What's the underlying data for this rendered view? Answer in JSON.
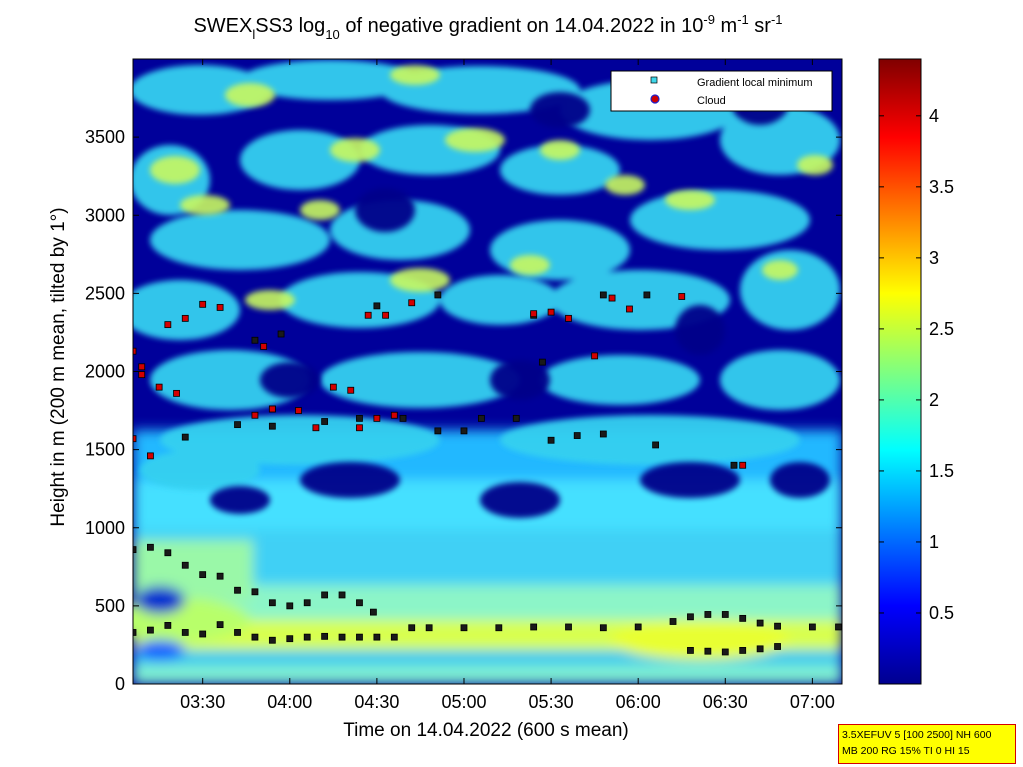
{
  "chart_data": {
    "type": "heatmap",
    "title_parts": {
      "pre": "SWEX",
      "sub_l": "l",
      "mid": "SS3 log",
      "sub_10": "10",
      "post": " of negative gradient on 14.04.2022 in 10",
      "sup_m9": "-9",
      "unit_m": " m",
      "sup_m1": "-1",
      "unit_sr": " sr",
      "sup_sr": "-1"
    },
    "xlabel": "Time on 14.04.2022 (600 s mean)",
    "ylabel": "Height in m (200 m mean, tilted by 1°)",
    "x_tick_labels": [
      "03:30",
      "04:00",
      "04:30",
      "05:00",
      "05:30",
      "06:00",
      "06:30",
      "07:00"
    ],
    "x_ticks_hours": [
      3.5,
      4.0,
      4.5,
      5.0,
      5.5,
      6.0,
      6.5,
      7.0
    ],
    "xlim_hours": [
      3.1,
      7.17
    ],
    "y_ticks": [
      0,
      500,
      1000,
      1500,
      2000,
      2500,
      3000,
      3500
    ],
    "ylim": [
      0,
      4000
    ],
    "colorbar": {
      "ticks": [
        0.5,
        1,
        1.5,
        2,
        2.5,
        3,
        3.5,
        4
      ],
      "tick_labels": [
        "0.5",
        "1",
        "1.5",
        "2",
        "2.5",
        "3",
        "3.5",
        "4"
      ],
      "range": [
        0,
        4.4
      ],
      "colormap": "jet"
    },
    "legend": {
      "placement": "top-right",
      "entries": [
        {
          "label": "Gradient local minimum",
          "color": "#3fd7ea",
          "marker": "square"
        },
        {
          "label": "Cloud",
          "color": "#cc0000",
          "edge": "#2020cc",
          "marker": "circle"
        }
      ]
    },
    "series": [
      {
        "name": "Gradient local minimum",
        "points": [
          [
            3.1,
            860
          ],
          [
            3.2,
            875
          ],
          [
            3.3,
            840
          ],
          [
            3.4,
            760
          ],
          [
            3.5,
            700
          ],
          [
            3.6,
            690
          ],
          [
            3.7,
            600
          ],
          [
            3.8,
            590
          ],
          [
            3.9,
            520
          ],
          [
            4.0,
            500
          ],
          [
            4.1,
            520
          ],
          [
            4.2,
            570
          ],
          [
            4.3,
            570
          ],
          [
            4.4,
            520
          ],
          [
            4.48,
            460
          ],
          [
            3.1,
            330
          ],
          [
            3.2,
            345
          ],
          [
            3.3,
            375
          ],
          [
            3.4,
            330
          ],
          [
            3.5,
            320
          ],
          [
            3.6,
            380
          ],
          [
            3.7,
            330
          ],
          [
            3.8,
            300
          ],
          [
            3.9,
            280
          ],
          [
            4.0,
            290
          ],
          [
            4.1,
            300
          ],
          [
            4.2,
            305
          ],
          [
            4.3,
            300
          ],
          [
            4.4,
            300
          ],
          [
            4.5,
            300
          ],
          [
            4.6,
            300
          ],
          [
            4.7,
            360
          ],
          [
            4.8,
            360
          ],
          [
            5.0,
            360
          ],
          [
            5.2,
            360
          ],
          [
            5.4,
            365
          ],
          [
            5.6,
            365
          ],
          [
            5.8,
            360
          ],
          [
            6.0,
            365
          ],
          [
            6.2,
            400
          ],
          [
            6.3,
            430
          ],
          [
            6.4,
            445
          ],
          [
            6.5,
            445
          ],
          [
            6.6,
            420
          ],
          [
            6.7,
            390
          ],
          [
            6.8,
            370
          ],
          [
            7.0,
            365
          ],
          [
            7.15,
            365
          ],
          [
            6.3,
            215
          ],
          [
            6.4,
            210
          ],
          [
            6.5,
            205
          ],
          [
            6.6,
            215
          ],
          [
            6.7,
            225
          ],
          [
            6.8,
            240
          ],
          [
            3.4,
            1580
          ],
          [
            3.7,
            1660
          ],
          [
            3.9,
            1650
          ],
          [
            4.2,
            1680
          ],
          [
            4.4,
            1700
          ],
          [
            4.65,
            1700
          ],
          [
            4.85,
            1620
          ],
          [
            5.0,
            1620
          ],
          [
            5.1,
            1700
          ],
          [
            5.3,
            1700
          ],
          [
            5.5,
            1560
          ],
          [
            5.65,
            1590
          ],
          [
            5.8,
            1600
          ],
          [
            6.1,
            1530
          ],
          [
            6.55,
            1400
          ],
          [
            3.8,
            2200
          ],
          [
            3.95,
            2240
          ],
          [
            4.5,
            2420
          ],
          [
            4.85,
            2490
          ],
          [
            5.4,
            2360
          ],
          [
            5.45,
            2060
          ],
          [
            5.8,
            2490
          ],
          [
            6.05,
            2490
          ],
          [
            3.9,
            1760
          ]
        ]
      },
      {
        "name": "Cloud",
        "points": [
          [
            3.1,
            1570
          ],
          [
            3.2,
            1460
          ],
          [
            3.15,
            1980
          ],
          [
            3.25,
            1900
          ],
          [
            3.35,
            1860
          ],
          [
            3.3,
            2300
          ],
          [
            3.4,
            2340
          ],
          [
            3.5,
            2430
          ],
          [
            3.6,
            2410
          ],
          [
            3.8,
            1720
          ],
          [
            3.9,
            1760
          ],
          [
            4.05,
            1750
          ],
          [
            4.15,
            1640
          ],
          [
            4.25,
            1900
          ],
          [
            4.35,
            1880
          ],
          [
            4.4,
            1640
          ],
          [
            4.5,
            1700
          ],
          [
            4.6,
            1720
          ],
          [
            4.55,
            2360
          ],
          [
            4.7,
            2440
          ],
          [
            3.85,
            2160
          ],
          [
            3.1,
            2130
          ],
          [
            3.15,
            2030
          ],
          [
            5.5,
            2380
          ],
          [
            5.6,
            2340
          ],
          [
            5.75,
            2100
          ],
          [
            5.85,
            2470
          ],
          [
            5.95,
            2400
          ],
          [
            6.25,
            2480
          ],
          [
            6.6,
            1400
          ],
          [
            5.4,
            2370
          ],
          [
            4.45,
            2360
          ]
        ]
      }
    ]
  },
  "info_box": {
    "line1": "3.5XEFUV 5 [100 2500] NH 600",
    "line2": "MB 200 RG 15% TI 0 HI 15"
  }
}
